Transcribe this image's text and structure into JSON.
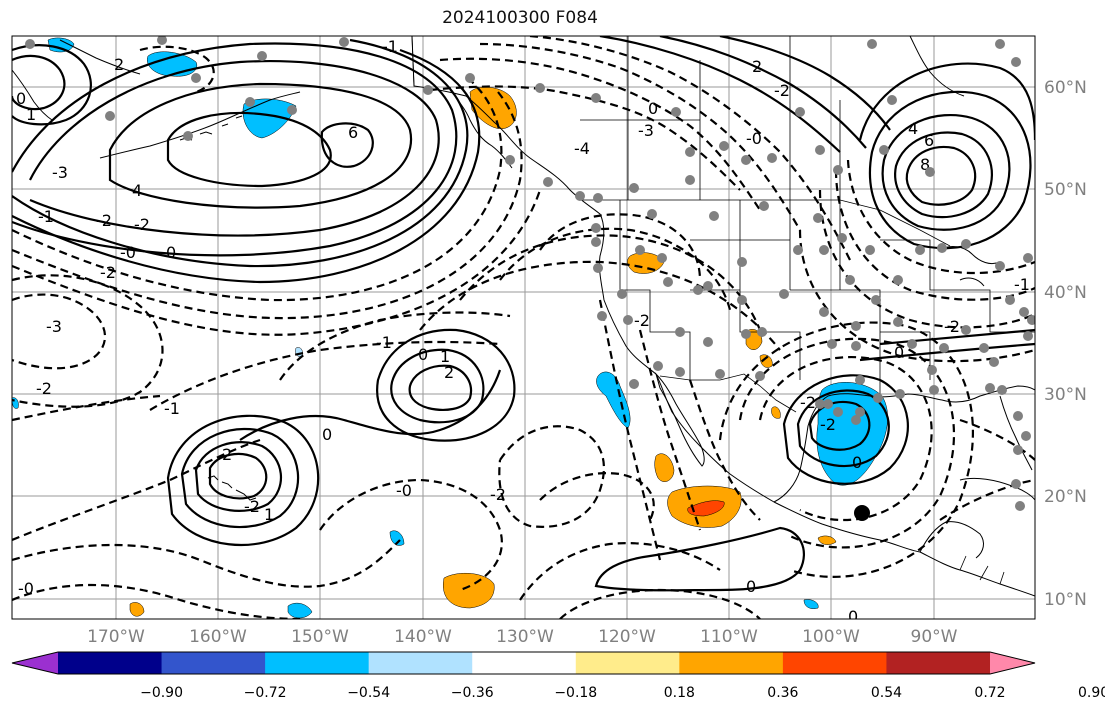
{
  "title": "2024100300 F084",
  "lat_labels": [
    "60°N",
    "50°N",
    "40°N",
    "30°N",
    "20°N",
    "10°N"
  ],
  "lon_labels": [
    "170°W",
    "160°W",
    "150°W",
    "140°W",
    "130°W",
    "120°W",
    "110°W",
    "100°W",
    "90°W"
  ],
  "colorbar": {
    "colors": [
      "#9b30d0",
      "#00008b",
      "#3355cc",
      "#00bfff",
      "#b0e2ff",
      "#ffffff",
      "#ffec8b",
      "#ffa500",
      "#ff4500",
      "#b22222",
      "#ff88aa"
    ],
    "tick_labels": [
      "−0.90",
      "−0.72",
      "−0.54",
      "−0.36",
      "−0.18",
      "0.18",
      "0.36",
      "0.54",
      "0.72",
      "0.90"
    ]
  },
  "contour_labels": [
    "-1",
    "2",
    "0",
    "1",
    "6",
    "-3",
    "4",
    "-1",
    "-2",
    "-2",
    "-0",
    "0",
    "-2",
    "-3",
    "-2",
    "-1",
    "-1",
    "0",
    "1",
    "2",
    "2",
    "0",
    "-2",
    "1",
    "-2",
    "-0",
    "-0",
    "-2",
    "-4",
    "-3",
    "0",
    "2",
    "-0",
    "4",
    "6",
    "8",
    "-2",
    "0",
    "-2",
    "0",
    "-2",
    "0",
    "0",
    "-2",
    "-1"
  ],
  "shading_colors": {
    "pos_low": "#ffa500",
    "pos_high": "#ff4500",
    "neg_low": "#00bfff",
    "neg_light": "#b0e2ff"
  },
  "marker_color": "#808080",
  "storm_marker_color": "#000000"
}
